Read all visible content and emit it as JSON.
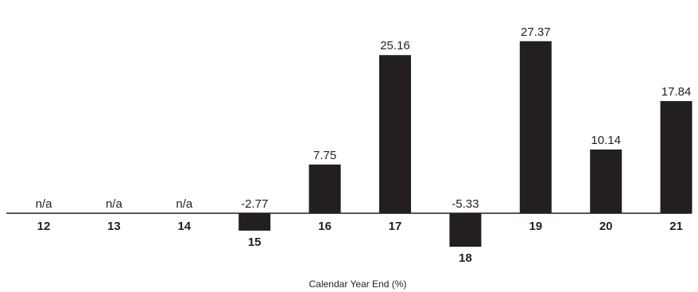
{
  "chart_data": {
    "type": "bar",
    "categories": [
      "12",
      "13",
      "14",
      "15",
      "16",
      "17",
      "18",
      "19",
      "20",
      "21"
    ],
    "values": [
      null,
      null,
      null,
      -2.77,
      7.75,
      25.16,
      -5.33,
      27.37,
      10.14,
      17.84
    ],
    "labels": [
      "n/a",
      "n/a",
      "n/a",
      "-2.77",
      "7.75",
      "25.16",
      "-5.33",
      "27.37",
      "10.14",
      "17.84"
    ],
    "xlabel": "Calendar Year End (%)",
    "bar_color": "#231f20",
    "axis_color": "#231f20",
    "legend": "none",
    "grid": false
  }
}
